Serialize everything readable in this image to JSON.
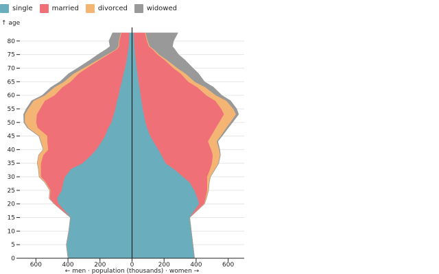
{
  "chart_data": {
    "type": "area",
    "ylabel": "↑ age",
    "xlabel": "← men · population (thousands) · women →",
    "legend": {
      "placement": "top-left",
      "entries": [
        {
          "name": "single",
          "color": "#6aaebd"
        },
        {
          "name": "married",
          "color": "#ef7177"
        },
        {
          "name": "divorced",
          "color": "#f3b474"
        },
        {
          "name": "widowed",
          "color": "#999999"
        }
      ]
    },
    "xlim": [
      -700,
      700
    ],
    "ylim": [
      0,
      85
    ],
    "xticks": [
      {
        "value": -600,
        "label": "600"
      },
      {
        "value": -400,
        "label": "400"
      },
      {
        "value": -200,
        "label": "200"
      },
      {
        "value": 0,
        "label": "0"
      },
      {
        "value": 200,
        "label": "200"
      },
      {
        "value": 400,
        "label": "400"
      },
      {
        "value": 600,
        "label": "600"
      }
    ],
    "yticks": [
      0,
      5,
      10,
      15,
      20,
      25,
      30,
      35,
      40,
      45,
      50,
      55,
      60,
      65,
      70,
      75,
      80
    ],
    "grid": "horizontal",
    "ages": [
      0,
      5,
      10,
      15,
      20,
      22,
      25,
      28,
      30,
      33,
      35,
      38,
      40,
      43,
      45,
      48,
      50,
      53,
      55,
      58,
      60,
      63,
      65,
      68,
      70,
      73,
      75,
      77,
      78,
      80,
      83
    ],
    "men": {
      "single": [
        400,
        410,
        395,
        385,
        460,
        470,
        440,
        430,
        420,
        380,
        310,
        255,
        225,
        190,
        170,
        150,
        130,
        115,
        105,
        95,
        85,
        75,
        65,
        55,
        45,
        35,
        30,
        25,
        22,
        20,
        18
      ],
      "married": [
        0,
        0,
        0,
        0,
        25,
        45,
        70,
        110,
        150,
        190,
        260,
        300,
        300,
        340,
        360,
        440,
        470,
        480,
        470,
        450,
        400,
        360,
        320,
        280,
        240,
        170,
        120,
        70,
        60,
        60,
        50
      ],
      "divorced": [
        0,
        0,
        0,
        0,
        1,
        2,
        4,
        6,
        10,
        15,
        22,
        28,
        30,
        40,
        50,
        60,
        70,
        75,
        75,
        70,
        60,
        50,
        40,
        30,
        20,
        12,
        8,
        5,
        5,
        4,
        3
      ],
      "widowed": [
        0,
        0,
        0,
        0,
        0,
        0,
        0,
        0,
        0,
        0,
        0,
        0,
        0,
        1,
        2,
        3,
        5,
        7,
        10,
        12,
        15,
        20,
        25,
        30,
        35,
        45,
        55,
        60,
        50,
        60,
        50
      ]
    },
    "women": {
      "single": [
        390,
        380,
        370,
        360,
        420,
        410,
        390,
        360,
        320,
        260,
        210,
        185,
        165,
        135,
        115,
        95,
        85,
        75,
        68,
        60,
        55,
        48,
        42,
        35,
        30,
        25,
        20,
        18,
        16,
        14,
        12
      ],
      "married": [
        0,
        0,
        0,
        0,
        30,
        50,
        80,
        110,
        150,
        230,
        290,
        320,
        330,
        340,
        380,
        430,
        460,
        500,
        490,
        460,
        410,
        360,
        310,
        270,
        230,
        180,
        140,
        110,
        90,
        80,
        70
      ],
      "divorced": [
        0,
        0,
        0,
        0,
        2,
        4,
        8,
        12,
        20,
        30,
        40,
        45,
        50,
        55,
        60,
        65,
        70,
        75,
        75,
        70,
        60,
        50,
        40,
        30,
        25,
        15,
        10,
        8,
        6,
        5,
        4
      ],
      "widowed": [
        0,
        0,
        0,
        0,
        0,
        0,
        0,
        0,
        0,
        1,
        1,
        2,
        3,
        5,
        7,
        10,
        12,
        15,
        20,
        25,
        35,
        50,
        60,
        80,
        95,
        110,
        120,
        130,
        140,
        160,
        200
      ]
    }
  }
}
